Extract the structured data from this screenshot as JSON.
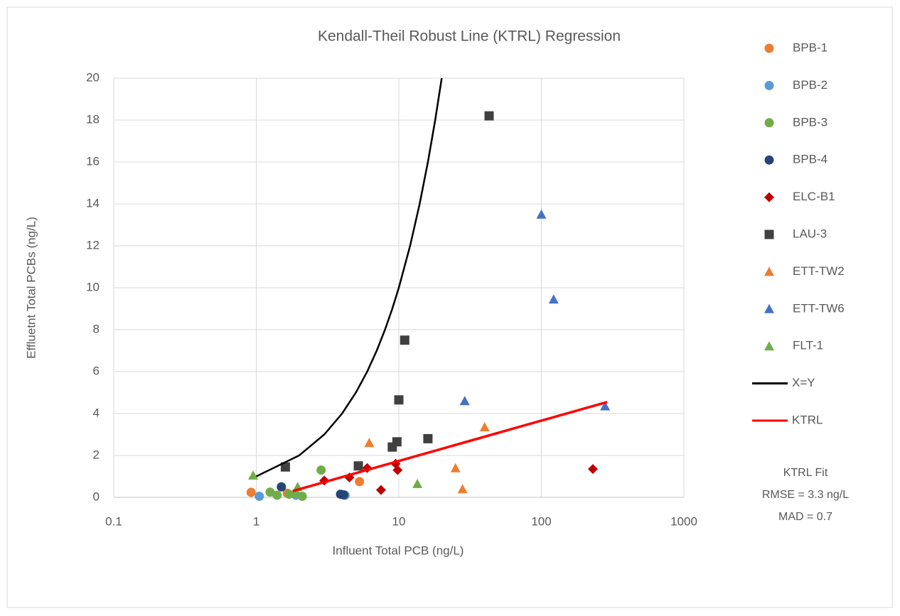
{
  "chart_data": {
    "type": "scatter",
    "title": "Kendall-Theil Robust Line (KTRL) Regression",
    "x_label": "Influent Total PCB (ng/L)",
    "y_label": "Effluetnt  Total PCBs (ng/L)",
    "x_log": true,
    "grid": true,
    "legend": "right",
    "xlim": [
      0.1,
      1000
    ],
    "xticks": [
      0.1,
      1,
      10,
      100,
      1000
    ],
    "ylim": [
      0,
      20
    ],
    "yticks": [
      0,
      2,
      4,
      6,
      8,
      10,
      12,
      14,
      16,
      18,
      20
    ],
    "annotations": [
      "KTRL Fit",
      "RMSE = 3.3 ng/L",
      "MAD = 0.7"
    ],
    "series": [
      {
        "name": "BPB-1",
        "color": "#ed7d31",
        "marker": "circle",
        "x": [
          0.92,
          1.65,
          5.3
        ],
        "y": [
          0.24,
          0.2,
          0.75
        ]
      },
      {
        "name": "BPB-2",
        "color": "#5b9bd5",
        "marker": "circle",
        "x": [
          1.05,
          1.9,
          4.2
        ],
        "y": [
          0.05,
          0.1,
          0.1
        ]
      },
      {
        "name": "BPB-3",
        "color": "#70ad47",
        "marker": "circle",
        "x": [
          1.25,
          1.4,
          1.7,
          2.1,
          2.85
        ],
        "y": [
          0.25,
          0.1,
          0.15,
          0.05,
          1.3
        ]
      },
      {
        "name": "BPB-4",
        "color": "#264478",
        "marker": "circle",
        "x": [
          1.5,
          3.9,
          4.1
        ],
        "y": [
          0.5,
          0.15,
          0.12
        ]
      },
      {
        "name": "ELC-B1",
        "color": "#c00000",
        "marker": "diamond",
        "x": [
          3,
          4.5,
          6,
          7.5,
          9.5,
          9.8,
          230
        ],
        "y": [
          0.8,
          0.95,
          1.4,
          0.35,
          1.6,
          1.3,
          1.35
        ]
      },
      {
        "name": "LAU-3",
        "color": "#404040",
        "marker": "square",
        "x": [
          1.6,
          5.2,
          9,
          9.7,
          10,
          11,
          16,
          43
        ],
        "y": [
          1.45,
          1.5,
          2.4,
          2.65,
          4.65,
          7.5,
          2.8,
          18.2
        ]
      },
      {
        "name": "ETT-TW2",
        "color": "#ed7d31",
        "marker": "triangle",
        "x": [
          6.2,
          25,
          28,
          40
        ],
        "y": [
          2.6,
          1.4,
          0.4,
          3.35
        ]
      },
      {
        "name": "ETT-TW6",
        "color": "#4472c4",
        "marker": "triangle",
        "x": [
          29,
          100,
          122,
          280
        ],
        "y": [
          4.6,
          13.5,
          9.45,
          4.35
        ]
      },
      {
        "name": "FLT-1",
        "color": "#70ad47",
        "marker": "triangle",
        "x": [
          0.95,
          1.95,
          1.9,
          13.5
        ],
        "y": [
          1.05,
          0.5,
          0.2,
          0.65
        ]
      },
      {
        "name": "X=Y",
        "color": "#000000",
        "marker": "line",
        "x": [
          1,
          2,
          3,
          4,
          5,
          6,
          7,
          8,
          9,
          10,
          12,
          14,
          16,
          18,
          20
        ],
        "y": [
          1,
          2,
          3,
          4,
          5,
          6,
          7,
          8,
          9,
          10,
          12,
          14,
          16,
          18,
          20
        ]
      },
      {
        "name": "KTRL",
        "color": "#ff0000",
        "marker": "line",
        "x": [
          1.8,
          290
        ],
        "y": [
          0.3,
          4.55
        ]
      }
    ]
  }
}
